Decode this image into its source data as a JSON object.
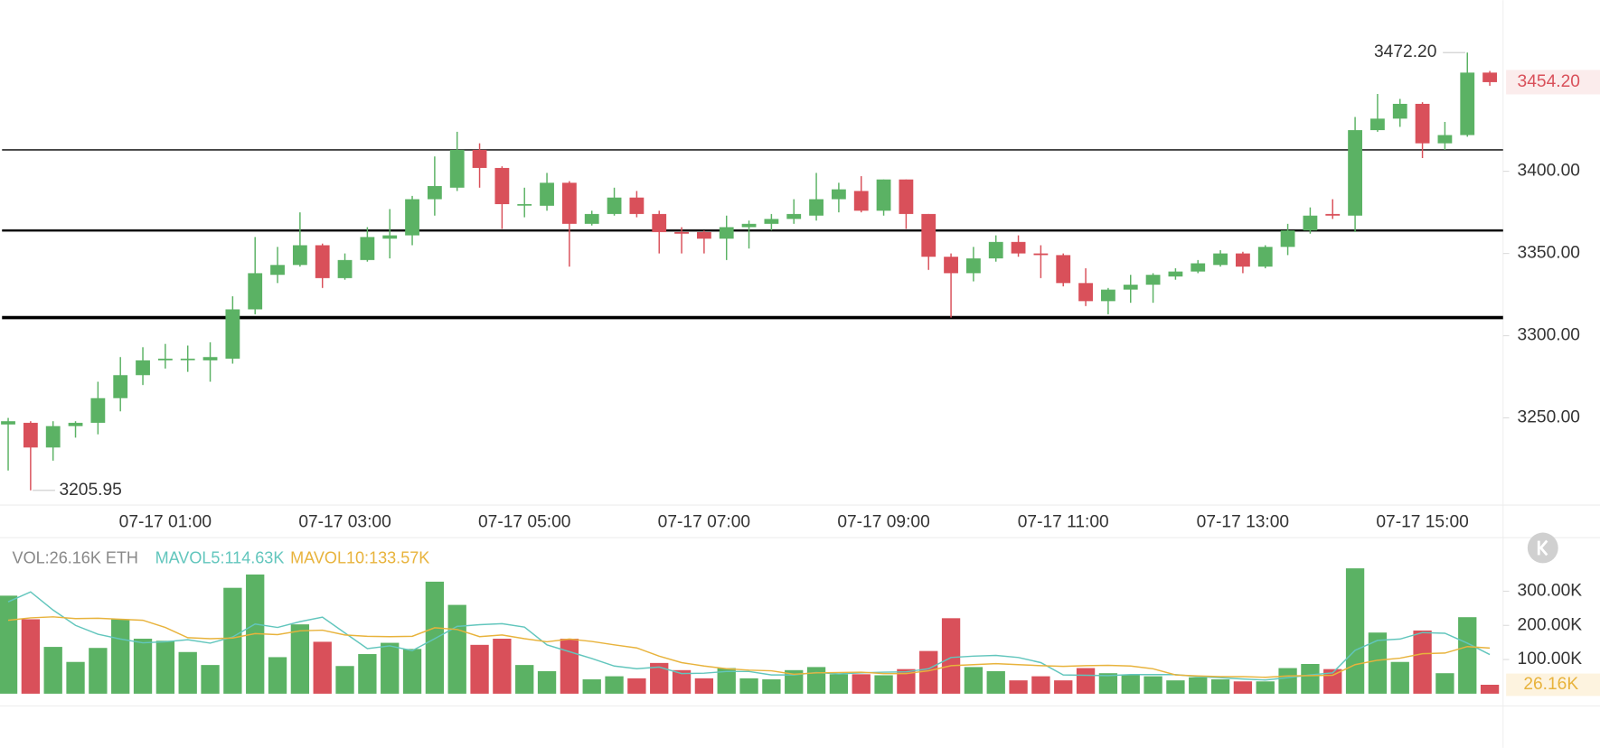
{
  "chart_data": [
    {
      "type": "candlestick",
      "categories": [
        null,
        null,
        null,
        null,
        null,
        null,
        null,
        "07-17 01:00",
        null,
        null,
        null,
        null,
        null,
        null,
        null,
        "07-17 03:00",
        null,
        null,
        null,
        null,
        null,
        null,
        null,
        "07-17 05:00",
        null,
        null,
        null,
        null,
        null,
        null,
        null,
        "07-17 07:00",
        null,
        null,
        null,
        null,
        null,
        null,
        null,
        "07-17 09:00",
        null,
        null,
        null,
        null,
        null,
        null,
        null,
        "07-17 11:00",
        null,
        null,
        null,
        null,
        null,
        null,
        null,
        "07-17 13:00",
        null,
        null,
        null,
        null,
        null,
        null,
        null,
        "07-17 15:00",
        null,
        null,
        null
      ],
      "open": [
        3246,
        3247,
        3232,
        3245,
        3247,
        3262,
        3276,
        3285,
        3286,
        3285,
        3286,
        3316,
        3337,
        3343,
        3355,
        3335,
        3346,
        3359,
        3361,
        3383,
        3390,
        3413,
        3402,
        3380,
        3379,
        3393,
        3368,
        3374,
        3384,
        3374,
        3363,
        3363,
        3359,
        3366,
        3368,
        3371,
        3373,
        3383,
        3388,
        3376,
        3395,
        3374,
        3348,
        3338,
        3347,
        3357,
        3350,
        3349,
        3332,
        3321,
        3328,
        3331,
        3336,
        3339,
        3343,
        3350,
        3342,
        3354,
        3364,
        3374,
        3373,
        3425,
        3432,
        3441,
        3417,
        3422,
        3460
      ],
      "high": [
        3250,
        3248,
        3248,
        3248,
        3272,
        3287,
        3293,
        3295,
        3294,
        3296,
        3324,
        3360,
        3354,
        3375,
        3356,
        3350,
        3366,
        3377,
        3385,
        3409,
        3424,
        3417,
        3403,
        3390,
        3399,
        3394,
        3376,
        3390,
        3388,
        3376,
        3366,
        3364,
        3373,
        3370,
        3374,
        3383,
        3399,
        3393,
        3397,
        3395,
        3395,
        3374,
        3350,
        3354,
        3361,
        3361,
        3355,
        3350,
        3341,
        3329,
        3337,
        3338,
        3341,
        3346,
        3352,
        3351,
        3355,
        3368,
        3378,
        3383,
        3433,
        3447,
        3444,
        3442,
        3430,
        3472.2,
        3461
      ],
      "low": [
        3218,
        3205.95,
        3224,
        3238,
        3240,
        3254,
        3270,
        3280,
        3278,
        3272,
        3283,
        3313,
        3332,
        3342,
        3329,
        3334,
        3345,
        3347,
        3355,
        3373,
        3388,
        3390,
        3365,
        3372,
        3376,
        3342,
        3367,
        3373,
        3372,
        3350,
        3350,
        3350,
        3346,
        3353,
        3364,
        3368,
        3370,
        3375,
        3375,
        3373,
        3365,
        3340,
        3311,
        3333,
        3345,
        3348,
        3335,
        3330,
        3318,
        3313,
        3320,
        3320,
        3334,
        3338,
        3342,
        3338,
        3341,
        3349,
        3362,
        3371,
        3363,
        3424,
        3427,
        3408,
        3413,
        3421,
        3452
      ],
      "close": [
        3248,
        3232,
        3245,
        3247,
        3262,
        3276,
        3285,
        3286,
        3286,
        3287,
        3316,
        3338,
        3343,
        3355,
        3335,
        3346,
        3360,
        3361,
        3383,
        3391,
        3413,
        3402,
        3380,
        3380,
        3393,
        3368,
        3374,
        3384,
        3374,
        3363,
        3362,
        3359,
        3366,
        3368,
        3371,
        3374,
        3383,
        3389,
        3376,
        3395,
        3374,
        3348,
        3338,
        3347,
        3357,
        3350,
        3349,
        3332,
        3321,
        3328,
        3331,
        3337,
        3339,
        3344,
        3350,
        3342,
        3354,
        3364,
        3373,
        3373,
        3425,
        3432,
        3441,
        3417,
        3422,
        3460,
        3454.2
      ],
      "up_color": "#5bb264",
      "down_color": "#d9505a",
      "ylim": [
        3197,
        3504
      ],
      "yticks": [
        {
          "value": 3400,
          "label": "3400.00"
        },
        {
          "value": 3350,
          "label": "3350.00"
        },
        {
          "value": 3300,
          "label": "3300.00"
        },
        {
          "value": 3250,
          "label": "3250.00"
        }
      ],
      "hlines": [
        3413,
        3364,
        3311
      ],
      "annotations": [
        {
          "value": 3472.2,
          "label": "3472.20"
        },
        {
          "value": 3205.95,
          "label": "3205.95"
        }
      ],
      "last_price": {
        "value": 3454.2,
        "label": "3454.20"
      }
    },
    {
      "type": "bar",
      "legend": "VOL:26.16K ETH",
      "values": [
        287000,
        218000,
        137000,
        93000,
        134000,
        218000,
        161000,
        155000,
        122000,
        84000,
        310000,
        349000,
        107000,
        203000,
        152000,
        81000,
        116000,
        149000,
        131000,
        328000,
        260000,
        143000,
        161000,
        84000,
        66000,
        161000,
        42000,
        51000,
        45000,
        90000,
        69000,
        45000,
        75000,
        45000,
        42000,
        69000,
        78000,
        57000,
        57000,
        54000,
        72000,
        125000,
        221000,
        78000,
        66000,
        39000,
        51000,
        39000,
        75000,
        60000,
        54000,
        51000,
        39000,
        48000,
        42000,
        36000,
        36000,
        75000,
        87000,
        72000,
        367000,
        179000,
        93000,
        185000,
        60000,
        224000,
        26160
      ],
      "series": [
        {
          "name": "MAVOL5:114.63K",
          "color": "#62c6bd",
          "values": [
            269000,
            298000,
            245000,
            200000,
            174000,
            160000,
            149000,
            152000,
            158000,
            148000,
            166000,
            204000,
            194000,
            211000,
            224000,
            178000,
            132000,
            140000,
            126000,
            161000,
            197000,
            202000,
            205000,
            195000,
            143000,
            123000,
            103000,
            81000,
            73000,
            78000,
            59000,
            60000,
            65000,
            65000,
            55000,
            55000,
            62000,
            58000,
            61000,
            63000,
            64000,
            73000,
            106000,
            110000,
            112000,
            106000,
            91000,
            55000,
            54000,
            53000,
            56000,
            56000,
            56000,
            50000,
            47000,
            43000,
            40000,
            47000,
            55000,
            61000,
            127000,
            156000,
            160000,
            179000,
            177000,
            148000,
            114630
          ]
        },
        {
          "name": "MAVOL10:133.57K",
          "color": "#e8b33c",
          "values": [
            215000,
            222000,
            225000,
            220000,
            221000,
            218000,
            215000,
            194000,
            164000,
            161000,
            163000,
            176000,
            173000,
            184000,
            186000,
            172000,
            168000,
            167000,
            168000,
            193000,
            188000,
            167000,
            172000,
            161000,
            152000,
            160000,
            153000,
            143000,
            134000,
            110000,
            91000,
            81000,
            73000,
            69000,
            67000,
            57000,
            61000,
            62000,
            63000,
            59000,
            59000,
            67000,
            82000,
            85000,
            88000,
            85000,
            82000,
            80000,
            82000,
            83000,
            81000,
            73000,
            55000,
            52000,
            50000,
            50000,
            48000,
            52000,
            53000,
            54000,
            85000,
            98000,
            104000,
            117000,
            119000,
            138000,
            133570
          ]
        }
      ],
      "ylim": [
        0,
        418000
      ],
      "yticks": [
        {
          "value": 300000,
          "label": "300.00K"
        },
        {
          "value": 200000,
          "label": "200.00K"
        },
        {
          "value": 100000,
          "label": "100.00K"
        }
      ],
      "last_volume": {
        "value": 26160,
        "label": "26.16K"
      }
    }
  ]
}
